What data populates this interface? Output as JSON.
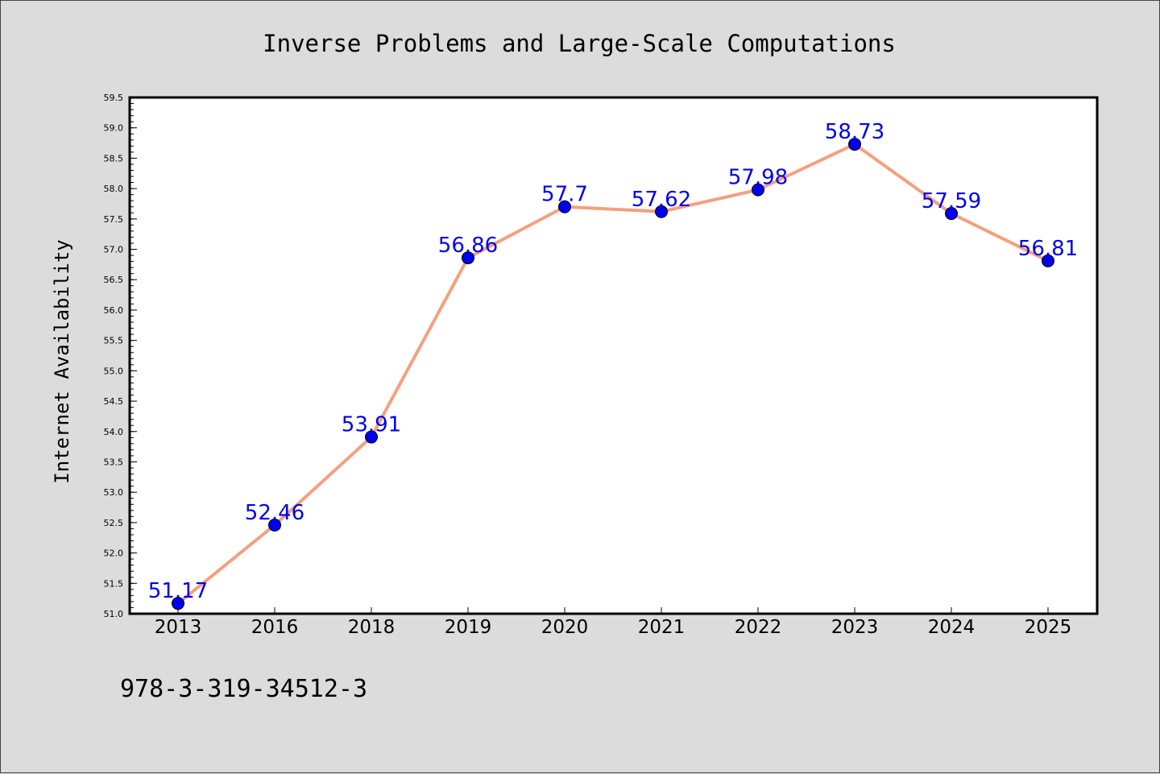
{
  "chart_data": {
    "type": "line",
    "title": "Inverse Problems and Large-Scale Computations",
    "ylabel": "Internet Availability",
    "xlabel": "",
    "categories": [
      "2013",
      "2016",
      "2018",
      "2019",
      "2020",
      "2021",
      "2022",
      "2023",
      "2024",
      "2025"
    ],
    "series": [
      {
        "values": [
          51.17,
          52.46,
          53.91,
          56.86,
          57.7,
          57.62,
          57.98,
          58.73,
          57.59,
          56.81
        ],
        "labels": [
          "51.17",
          "52.46",
          "53.91",
          "56.86",
          "57.7",
          "57.62",
          "57.98",
          "58.73",
          "57.59",
          "56.81"
        ]
      }
    ],
    "ylim": [
      51.0,
      59.5
    ],
    "yticks": [
      "51.0",
      "51.5",
      "52.0",
      "52.5",
      "53.0",
      "53.5",
      "54.0",
      "54.5",
      "55.0",
      "55.5",
      "56.0",
      "56.5",
      "57.0",
      "57.5",
      "58.0",
      "58.5",
      "59.0",
      "59.5"
    ],
    "grid": false,
    "legend": "none",
    "colors": {
      "line": "#f4a07e",
      "marker": "#0000ee",
      "label": "#0000ee",
      "background": "#dcdcdc",
      "plot_background": "#ffffff"
    }
  },
  "footer": {
    "isbn": "978-3-319-34512-3"
  }
}
